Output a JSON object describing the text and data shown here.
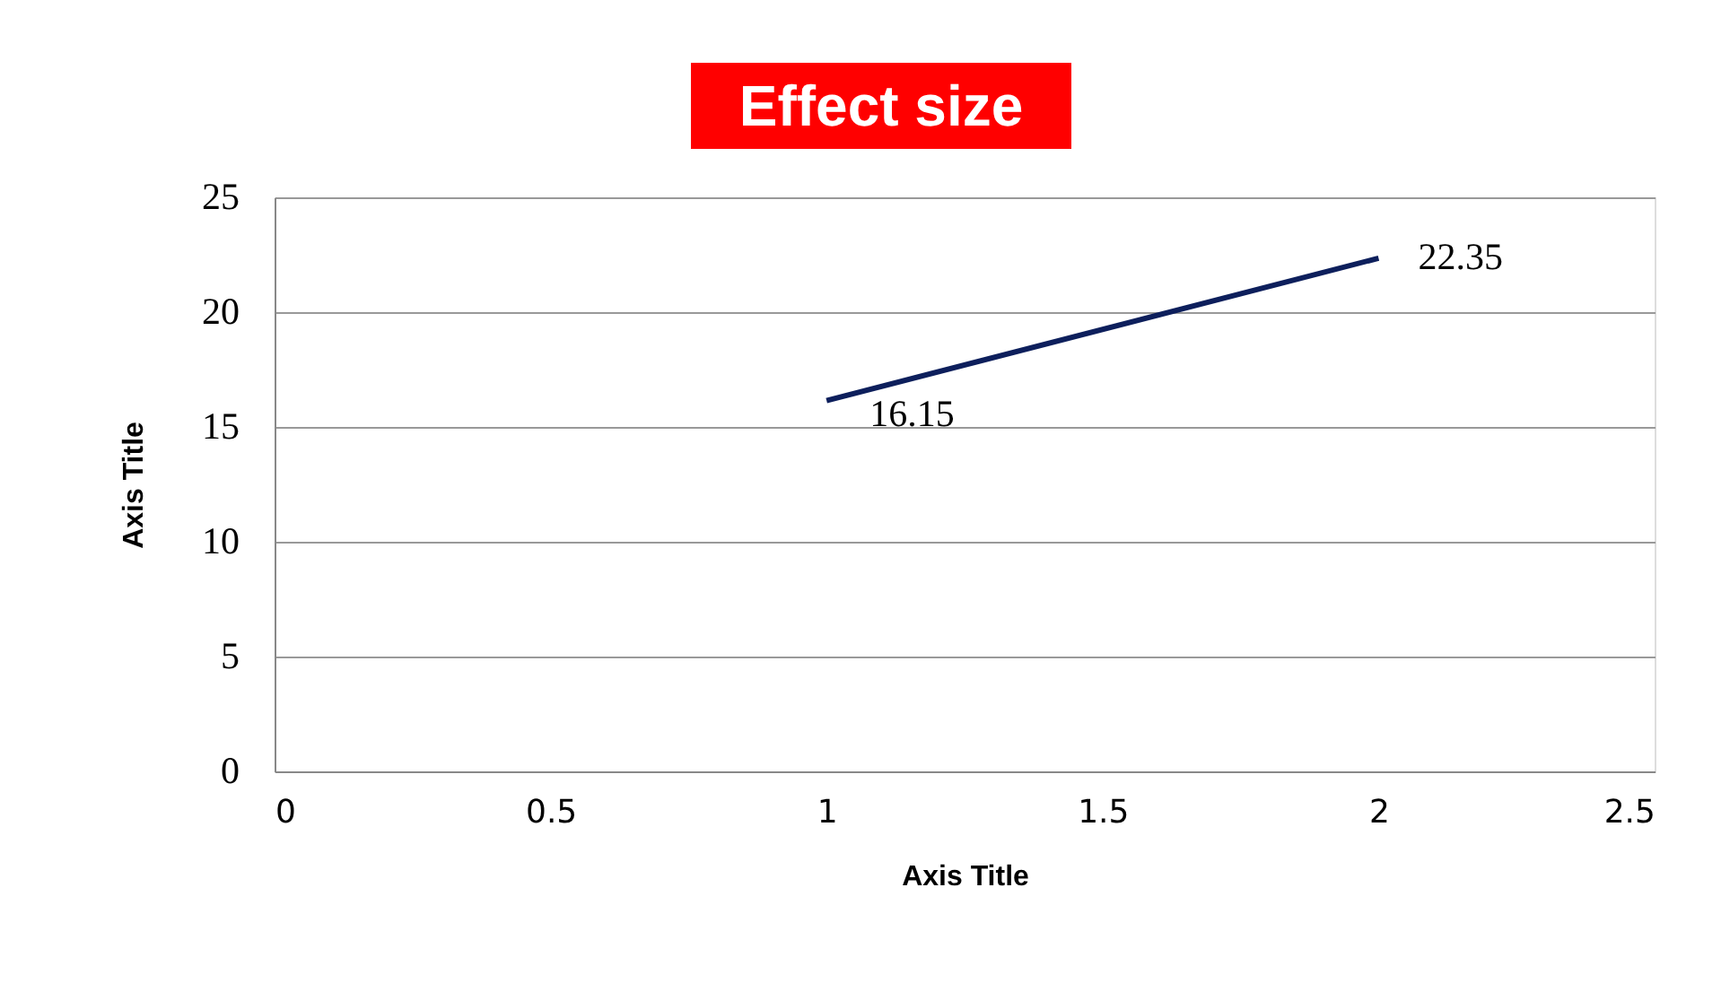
{
  "chart_data": {
    "type": "line",
    "title": "Effect size",
    "xlabel": "Axis Title",
    "ylabel": "Axis Title",
    "x": [
      1,
      2
    ],
    "series": [
      {
        "color": "#0d1f5c",
        "values": [
          16.15,
          22.35
        ]
      }
    ],
    "xlim": [
      0,
      2.5
    ],
    "xticks": [
      0,
      0.5,
      1,
      1.5,
      2,
      2.5
    ],
    "ylim": [
      0,
      25
    ],
    "yticks": [
      0,
      5,
      10,
      15,
      20,
      25
    ],
    "grid": "y",
    "data_labels": true,
    "marker": "none",
    "line_style": "solid"
  }
}
